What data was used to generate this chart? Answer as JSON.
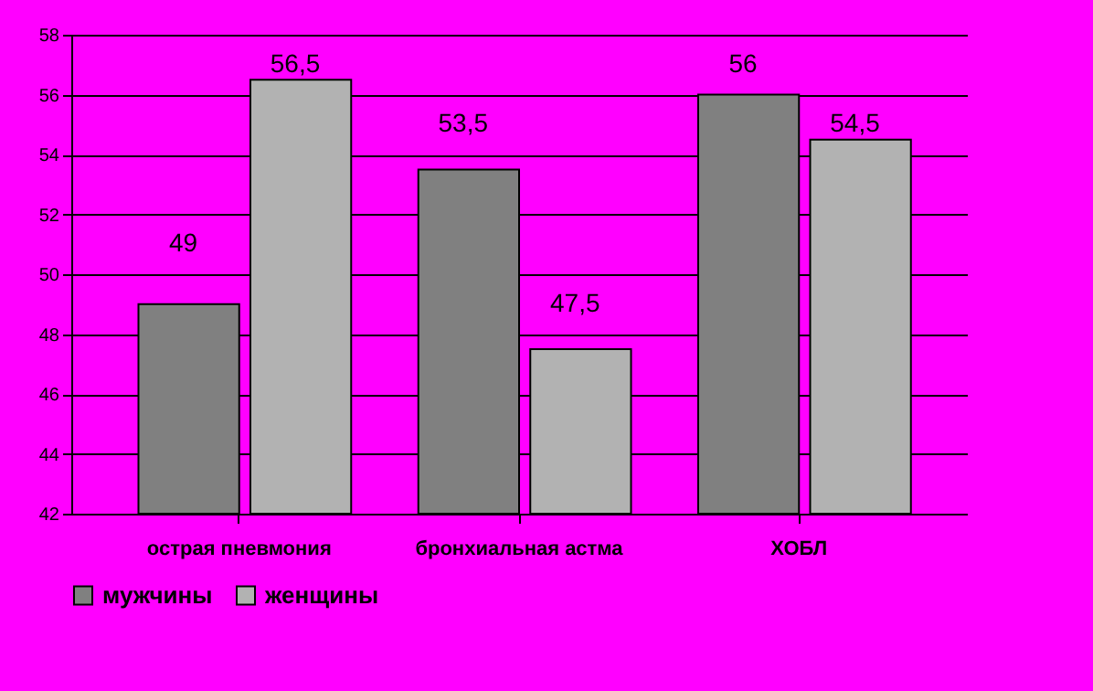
{
  "chart_data": {
    "type": "bar",
    "categories": [
      "острая пневмония",
      "бронхиальная астма",
      "ХОБЛ"
    ],
    "series": [
      {
        "name": "мужчины",
        "color": "#808080",
        "values": [
          49,
          53.5,
          56
        ],
        "value_labels": [
          "49",
          "53,5",
          "56"
        ]
      },
      {
        "name": "женщины",
        "color": "#b2b2b2",
        "values": [
          56.5,
          47.5,
          54.5
        ],
        "value_labels": [
          "56,5",
          "47,5",
          "54,5"
        ]
      }
    ],
    "ylim": [
      42,
      58
    ],
    "yticks": [
      42,
      44,
      46,
      48,
      50,
      52,
      54,
      56,
      58
    ],
    "grid": "y",
    "legend": "bottom"
  }
}
